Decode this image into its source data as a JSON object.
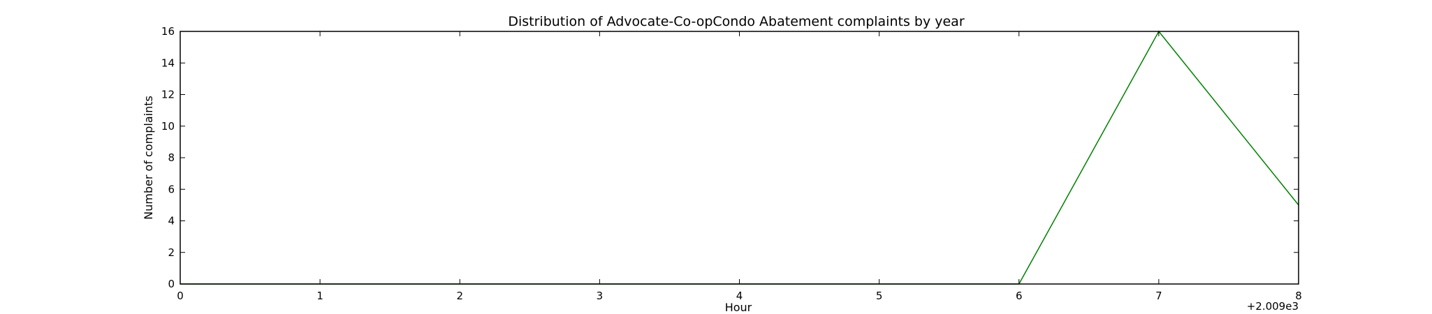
{
  "chart_data": {
    "type": "line",
    "title": "Distribution of  Advocate-Co-opCondo Abatement complaints by year",
    "xlabel": "Hour",
    "ylabel": "Number of complaints",
    "x_offset_label": "+2.009e3",
    "x": [
      0,
      1,
      2,
      3,
      4,
      5,
      6,
      7,
      8
    ],
    "xlim": [
      0,
      8
    ],
    "ylim": [
      0,
      16
    ],
    "xticks": [
      "0",
      "1",
      "2",
      "3",
      "4",
      "5",
      "6",
      "7",
      "8"
    ],
    "yticks": [
      "0",
      "2",
      "4",
      "6",
      "8",
      "10",
      "12",
      "14",
      "16"
    ],
    "grid": false,
    "series": [
      {
        "values": [
          0,
          0,
          0,
          0,
          0,
          0,
          0,
          16,
          5
        ],
        "color": "#008000"
      }
    ]
  }
}
